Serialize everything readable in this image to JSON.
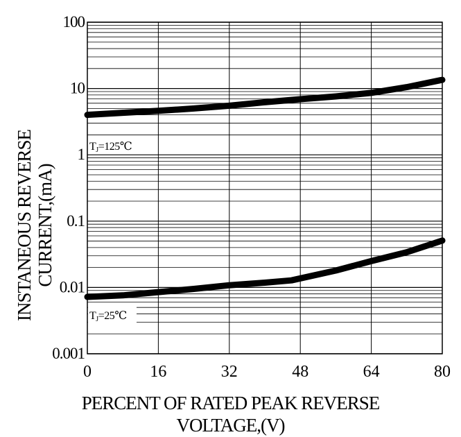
{
  "chart_data": {
    "type": "line",
    "title": "",
    "xlabel_lines": [
      "PERCENT OF RATED PEAK REVERSE",
      "VOLTAGE,(V)"
    ],
    "ylabel_lines": [
      "INSTANEOUS REVERSE",
      "CURRENT,(mA)"
    ],
    "x_ticks": [
      "0",
      "16",
      "32",
      "48",
      "64",
      "80"
    ],
    "y_ticks": [
      "0.001",
      "0.01",
      "0.1",
      "1",
      "10",
      "100"
    ],
    "xlim": [
      0,
      80
    ],
    "ylim": [
      0.001,
      100
    ],
    "y_scale": "log",
    "grid": true,
    "series": [
      {
        "annotation_main": "TJ=125",
        "annotation_sub": "",
        "annotation_unit": "℃",
        "x": [
          0,
          8,
          16,
          24,
          32,
          40,
          48,
          56,
          64,
          72,
          80
        ],
        "y": [
          4.0,
          4.3,
          4.6,
          5.0,
          5.5,
          6.2,
          6.9,
          7.6,
          8.6,
          10.5,
          13.5
        ]
      },
      {
        "annotation_main": "TJ=25",
        "annotation_sub": "",
        "annotation_unit": "℃",
        "x": [
          0,
          8,
          16,
          24,
          32,
          40,
          46,
          56,
          64,
          72,
          80
        ],
        "y": [
          0.0072,
          0.0076,
          0.0085,
          0.0095,
          0.0108,
          0.0118,
          0.0128,
          0.018,
          0.025,
          0.034,
          0.051
        ]
      }
    ]
  }
}
